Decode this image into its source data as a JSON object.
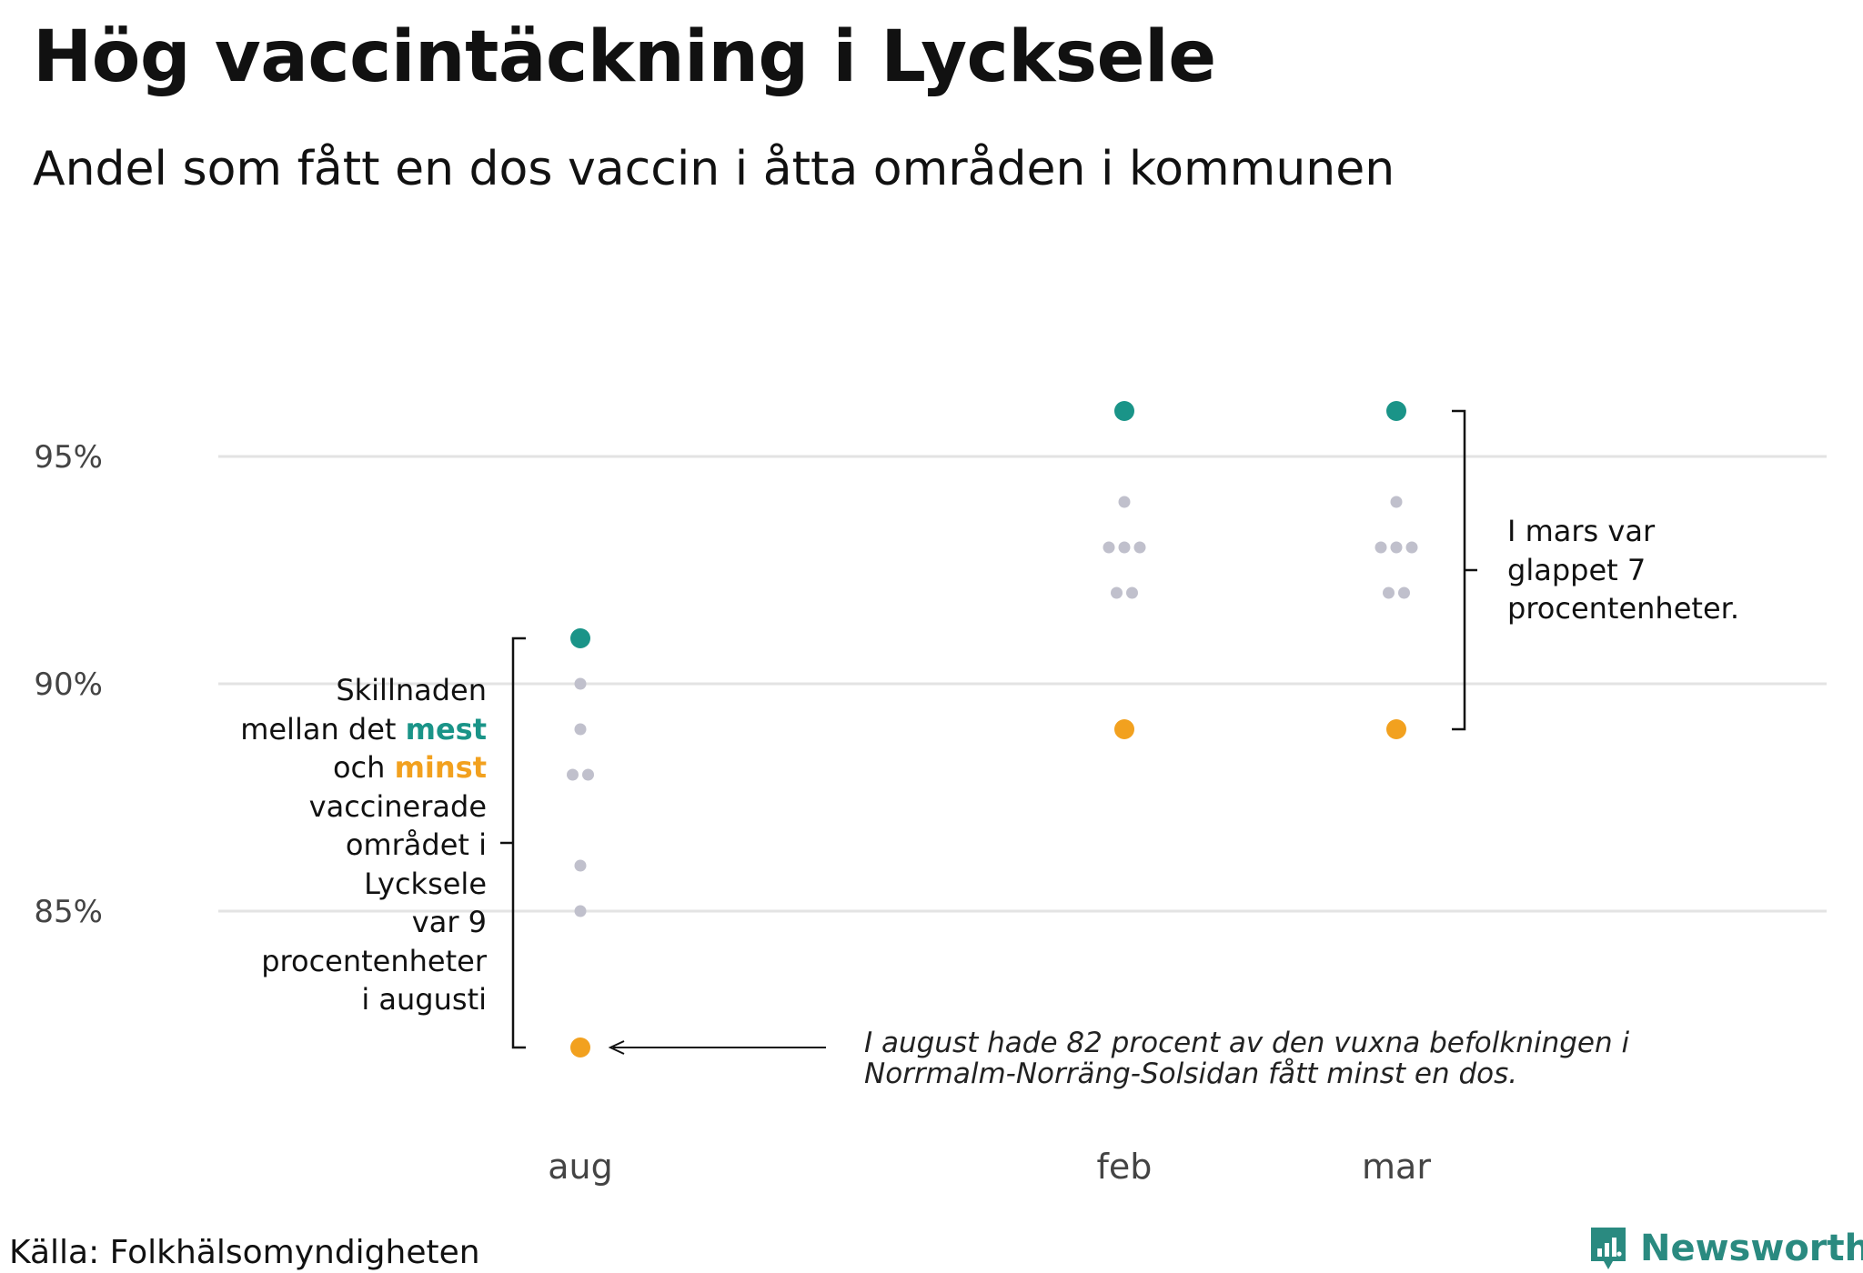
{
  "title": "Hög vaccintäckning i Lycksele",
  "subtitle": "Andel som fått en dos vaccin i åtta områden i kommunen",
  "source": "Källa: Folkhälsomyndigheten",
  "brand": "Newsworthy",
  "colors": {
    "most": "#1a9488",
    "least": "#f2a11f",
    "other": "#c0c0cc",
    "grid": "#e3e3e3",
    "axis_text": "#444444"
  },
  "annotations": {
    "left_line1": "Skillnaden",
    "left_line2_pre": "mellan det ",
    "left_mest": "mest",
    "left_line3_pre": "och ",
    "left_minst": "minst",
    "left_line4": "vaccinerade",
    "left_line5": "området i",
    "left_line6": "Lycksele",
    "left_line7": "var 9",
    "left_line8": "procentenheter",
    "left_line9": "i augusti",
    "right_line1": "I mars var",
    "right_line2": "glappet 7",
    "right_line3": "procentenheter.",
    "arrow_line1": "I august hade 82 procent av den vuxna befolkningen i",
    "arrow_line2": "Norrmalm-Norräng-Solsidan fått minst en dos."
  },
  "chart_data": {
    "type": "scatter",
    "categories": [
      "aug",
      "feb",
      "mar"
    ],
    "yticks": [
      85,
      90,
      95
    ],
    "ytick_labels": [
      "85%",
      "90%",
      "95%"
    ],
    "ylim": [
      80,
      100
    ],
    "series": [
      {
        "role": "most",
        "values": [
          91,
          96,
          96
        ]
      },
      {
        "role": "least",
        "values": [
          82,
          89,
          89
        ]
      },
      {
        "role": "other",
        "points": [
          {
            "cat": "aug",
            "y": 90
          },
          {
            "cat": "aug",
            "y": 89
          },
          {
            "cat": "aug",
            "y": 88
          },
          {
            "cat": "aug",
            "y": 88
          },
          {
            "cat": "aug",
            "y": 86
          },
          {
            "cat": "aug",
            "y": 85
          },
          {
            "cat": "feb",
            "y": 94
          },
          {
            "cat": "feb",
            "y": 93
          },
          {
            "cat": "feb",
            "y": 93
          },
          {
            "cat": "feb",
            "y": 93
          },
          {
            "cat": "feb",
            "y": 92
          },
          {
            "cat": "feb",
            "y": 92
          },
          {
            "cat": "mar",
            "y": 94
          },
          {
            "cat": "mar",
            "y": 93
          },
          {
            "cat": "mar",
            "y": 93
          },
          {
            "cat": "mar",
            "y": 93
          },
          {
            "cat": "mar",
            "y": 92
          },
          {
            "cat": "mar",
            "y": 92
          }
        ]
      }
    ]
  }
}
